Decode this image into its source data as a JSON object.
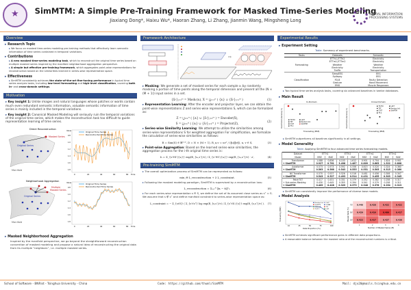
{
  "header": {
    "title": "SimMTM: A Simple Pre-Training Framework for Masked Time-Series Modeling",
    "authors": "Jiaxiang Dong*, Haixu Wu*, Haoran Zhang, Li Zhang, Jianmin Wang, Mingsheng Long",
    "left_logo": "Tsinghua University seal",
    "right_logo": {
      "line1": "NEURAL INFORMATION",
      "line2": "PROCESSING SYSTEMS"
    }
  },
  "colors": {
    "section_bar": "#2f4f8f",
    "section_text": "#f5e6a0",
    "rule": "#f0a060",
    "original_series": "#3aa0e0",
    "reconstructed_series": "#f5a040",
    "masked": "#c0202a"
  },
  "overview": {
    "title": "Overview",
    "research_topic": {
      "title": "Research Topic",
      "text": "We focus on masked time-series modeling pre-training methods that effectively learn semantic information of time series contained in temporal variations."
    },
    "contributions": {
      "title": "Contributions",
      "items": [
        {
          "bold": "A new masked time-series modeling task",
          "text": ", which to reconstruct the original time series based on multiple masked series inspired by the manifold neighborhood aggregation perspective."
        },
        {
          "bold": "A simple but effective pre-training framework",
          "text": ", which aggregates point-wise representations for reconstruction based on the similarities learned in series-wise representation space."
        }
      ]
    },
    "effectiveness": {
      "title": "Effectiveness",
      "segments": [
        "SimMTM consistently achieves ",
        "the state-of-the-art fine-tuning performance",
        " in typical time series analysis tasks, including ",
        "low-level forecasting",
        " and ",
        "high-level classification",
        ", covering ",
        "both in-",
        " and ",
        "cross-domain settings",
        "."
      ]
    }
  },
  "motivation": {
    "title": "Motivation",
    "insight1": {
      "label": "Key insight 1:",
      "text": " Unlike images and natural languages whose patches or words contain much even redundant semantic information, valuable semantic information of time series is mainly included in the temporal variations."
    },
    "insight2": {
      "label": "Key insight 2:",
      "text": " Canonical Masked Modeling will seriously ruin the temporal variations of the original time series, which makes the reconstruction task too difficult to guide representation learning of time series."
    },
    "fig_direct": {
      "title": "Direct Reconstruction",
      "masked": "Masked Series",
      "original": "Original Series",
      "manifold": "Manifold"
    },
    "fig_neighbor": {
      "title": "Neighborhood Aggregation",
      "masked1": "Multiple",
      "masked2": "Masked Series",
      "original": "Original Series",
      "manifold": "Manifold"
    },
    "plot": {
      "ylabel": "Value",
      "xlabel": "Time",
      "legend_original": "Original Time Series",
      "legend_reconstructed": "Reconstructed Time Series",
      "xticks": [
        "0",
        "20",
        "40",
        "60",
        "80"
      ],
      "yticks": [
        "0.8",
        "1.0",
        "1.2",
        "1.4",
        "1.6",
        "1.8"
      ]
    },
    "mna": {
      "title": "Masked Neighborhood Aggregation",
      "text": "Inspired by the manifold perspective, we go beyond the straightforward reconstruction convention of masked modeling and propose a natural idea of reconstructing the original data from its multiple “neighbors”, i.e. multiple masked series."
    }
  },
  "framework": {
    "title": "Framework Architecture",
    "masking": {
      "label": "Masking",
      "text": ": We generate a set of masked series for each sample xᵢ by randomly masking a portion of time points along the temporal dimension and present all the (N × (M + 1)) input series in a set.",
      "eq": "{x̃ᵢʲ}ⱼ₌₁ᴹ = Maskᵣ(xᵢ),  X = ⋃ᵢ₌₁ᴺ ( {xᵢ} ∪ {x̃ᵢʲ}ⱼ₌₁ᴹ )",
      "num": "(1)"
    },
    "rep": {
      "label": "Representation Learning",
      "text": ": After the encoder and projector layer, we can obtain the point-wise representations Z and series-wise representations S, which can be formalized as:",
      "eq1": "Z = ⋃ᵢ₌₁ᴺ ( {zᵢ} ∪ {z̃ᵢʲ}ⱼ₌₁ᴹ ) = Encoder(X),",
      "eq2": "S = ⋃ᵢ₌₁ᴺ ( {sᵢ} ∪ {s̃ᵢʲ}ⱼ₌₁ᴹ ) = Projector(Z),",
      "num": "(2)"
    },
    "sim": {
      "label": "Series-wise Similarity Learning",
      "text": ": We attempt to utilize the similarities among series-wise representations S for weighted aggregation For simplification, we formalize the calculation of series-wise similarities as follows:",
      "eq": "R = Sim(S) ∈ ℝᴰˣᴰ, D = N × (M + 1),   R_u,v = uvᵀ / (‖u‖‖v‖), u, v ∈ S,",
      "num": "(3)"
    },
    "agg": {
      "label": "Point-wise Aggregation",
      "text": ": Based on the learned series-wise similarities, the aggregation process for the i-th original time series is:",
      "eq": "ẑᵢ = Σ_{s′∈S∖{sᵢ}} exp(R_{sᵢ,s′}/τ) / Σ_{s″∈S∖{sᵢ}} exp(R_{sᵢ,s″}/τ) · z′,",
      "num": "(4)"
    }
  },
  "pretrain": {
    "title": "Pre-training SimMTM",
    "b1": "The overall optimization process of SimMTM can be represented as follows:",
    "eq5": "min_Θ  L_reconstruction + λ L_constraint.",
    "num5": "(5)",
    "b2": "Following the masked modeling paradigm, SimMTM is supervised by a reconstruction loss:",
    "eq6": "L_reconstruction = Σᵢ₌₁ᴺ ‖xᵢ − x̂ᵢ‖²₂.",
    "num6": "(6)",
    "b3": "For each series-wise representation s ∈ S, we define the set of its assumed close series as s⁺ ⊂ S. We assume that s ∉ s⁺ and define manifold constraint to series-wise representation space as:",
    "eq7": "L_constraint = − Σ_{s∈S} ( Σ_{s′∈s⁺} log exp(R_{s,s′}/τ) / Σ_{s″∈S∖{s}} exp(R_{s,s″}/τ) ).",
    "num7": "(7)"
  },
  "results": {
    "title": "Experimental Results",
    "setting": {
      "title": "Experiment Setting",
      "caption_key": "Table:",
      "caption": " Summary of experiment benchmarks.",
      "headers": [
        "Tasks",
        "Datasets",
        "Semantic"
      ],
      "groups": [
        {
          "task": "Forecasting",
          "rows": [
            [
              "ETTh1,ETTh2",
              "Electricity"
            ],
            [
              "ETTm1,ETTm2",
              "Electricity"
            ],
            [
              "Weather",
              "Weather"
            ],
            [
              "Electricity",
              "Electricity"
            ],
            [
              "Traffic",
              "Transportation"
            ]
          ]
        },
        {
          "task": "Classification",
          "rows": [
            [
              "SleepEEG",
              "EEG"
            ],
            [
              "Epilepsy",
              "EEG"
            ],
            [
              "FD-B",
              "Faulty Detection"
            ],
            [
              "Gesture",
              "Hand Movement"
            ],
            [
              "EMG",
              "Muscle Responses"
            ]
          ]
        }
      ],
      "note": "Two typical time series analysis tasks, covering six advanced baselines in twelve databases."
    },
    "main": {
      "title": "Main Result",
      "in_domain": "In-Domain",
      "cross_domain": "Cross-Domain",
      "xlabel": "Forecasting (MSE)",
      "ylabel": "Classification (Accuracy %)",
      "legend": [
        "TS-TCC",
        "TST",
        "CoST",
        "TF-C",
        "LaST",
        "Random Init.",
        "SimMTM"
      ],
      "note": "SimMTM outperforms all baselines significantly in all settings."
    },
    "generality": {
      "title": "Model Generality",
      "caption_key": "Table:",
      "caption": " Applying SimMTM to four advanced time series forecasting models.",
      "datasets": [
        "ETTh1",
        "ETTh2",
        "ETTm1",
        "ETTm2"
      ],
      "dataset_label": "Dataset",
      "model_label": "Model",
      "metrics": [
        "MSE",
        "MAE"
      ],
      "rows": [
        {
          "model": "Transformer",
          "values": [
            "1.088",
            "0.836",
            "4.103",
            "1.612",
            "0.901",
            "0.704",
            "1.624",
            "0.901"
          ]
        },
        {
          "model": "+ SimMTM",
          "bold": true,
          "values": [
            "0.927",
            "0.761",
            "3.498",
            "1.487",
            "0.809",
            "0.663",
            "1.322",
            "0.808"
          ]
        },
        {
          "model": "Autoformer",
          "values": [
            "0.573",
            "0.573",
            "0.592",
            "0.556",
            "0.615",
            "0.520",
            "0.324",
            "0.360"
          ],
          "group": true
        },
        {
          "model": "+ SimMTM",
          "bold": true,
          "values": [
            "0.563",
            "0.568",
            "0.543",
            "0.555",
            "0.551",
            "0.505",
            "0.315",
            "0.360"
          ]
        },
        {
          "model": "NS Transformer",
          "values": [
            "0.570",
            "0.537",
            "0.526",
            "0.516",
            "0.481",
            "0.456",
            "0.306",
            "0.347"
          ],
          "group": true
        },
        {
          "model": "+ SimMTM",
          "bold": true,
          "values": [
            "0.543",
            "0.527",
            "0.493",
            "0.514",
            "0.431",
            "0.455",
            "0.303",
            "0.345"
          ]
        },
        {
          "model": "PatchTST",
          "values": [
            "0.417",
            "0.431",
            "0.331",
            "0.379",
            "0.352",
            "0.382",
            "0.258",
            "0.317"
          ],
          "group": true
        },
        {
          "model": "+ Sub-series Masking",
          "values": [
            "0.430",
            "0.445",
            "0.355",
            "0.394",
            "0.341",
            "0.379",
            "0.258",
            "0.311"
          ]
        },
        {
          "model": "+ SimMTM",
          "bold": true,
          "values": [
            "0.409",
            "0.428",
            "0.329",
            "0.379",
            "0.348",
            "0.378",
            "0.254",
            "0.313"
          ]
        }
      ],
      "note": "SimMTM can consistently improve the performance of diverse base models."
    },
    "analysis": {
      "title": "Model Analysis",
      "line": {
        "xlabel": "Data Proportion (%)",
        "ylabel": "Forecasting (MSE)",
        "x": [
          "10",
          "25",
          "50",
          "75",
          "100"
        ],
        "legend": [
          "Random Init.",
          "SimMTM",
          "TS2Vec",
          "TS-TCC",
          "CoST",
          "Ti-MAE",
          "TST",
          "LaST"
        ]
      },
      "heatmap": {
        "xlabel": "Number of Masked Series (M)",
        "ylabel": "Masked Ratio (%)",
        "rows": [
          "75%",
          "50%",
          "25%"
        ],
        "cols": [
          "1",
          "2",
          "3",
          "4"
        ],
        "values": [
          [
            "0.440",
            "0.428",
            "0.422",
            "0.422"
          ],
          [
            "0.429",
            "0.416",
            "0.409",
            "0.417"
          ],
          [
            "0.423",
            "0.417",
            "0.427",
            "0.430"
          ]
        ]
      },
      "notes": [
        "SimMTM achieves significant performance gains in different data proportions.",
        "A reasonable balance between the masked ratio and the reconstructed numbers is critical."
      ]
    }
  },
  "chart_data": [
    {
      "type": "line",
      "title": "",
      "xlabel": "Data Proportion (%)",
      "ylabel": "Forecasting (MSE)",
      "x": [
        10,
        25,
        50,
        75,
        100
      ],
      "series": [
        {
          "name": "Random Init.",
          "values": [
            0.78,
            0.71,
            0.71,
            0.7,
            0.58
          ]
        },
        {
          "name": "SimMTM",
          "values": [
            0.56,
            0.51,
            0.48,
            0.46,
            0.43
          ]
        },
        {
          "name": "TS2Vec",
          "values": [
            0.63,
            0.57,
            0.53,
            0.49,
            0.45
          ]
        },
        {
          "name": "CoST",
          "values": [
            0.62,
            0.56,
            0.52,
            0.49,
            0.46
          ]
        },
        {
          "name": "TST",
          "values": [
            0.62,
            0.58,
            0.56,
            0.53,
            0.5
          ]
        }
      ],
      "ylim": [
        0.4,
        0.8
      ]
    },
    {
      "type": "heatmap",
      "xlabel": "Number of Masked Series (M)",
      "ylabel": "Masked Ratio (%)",
      "x": [
        "1",
        "2",
        "3",
        "4"
      ],
      "y": [
        "75%",
        "50%",
        "25%"
      ],
      "values": [
        [
          0.44,
          0.428,
          0.422,
          0.422
        ],
        [
          0.429,
          0.416,
          0.409,
          0.417
        ],
        [
          0.423,
          0.417,
          0.427,
          0.43
        ]
      ]
    }
  ],
  "footer": {
    "left": "School of Software - BNRist - Tsinghua University - China",
    "code": "Code: https://github.com/thuml/SimMTM",
    "mail": "Mail: djx20@mails.tsinghua.edu.cn"
  }
}
